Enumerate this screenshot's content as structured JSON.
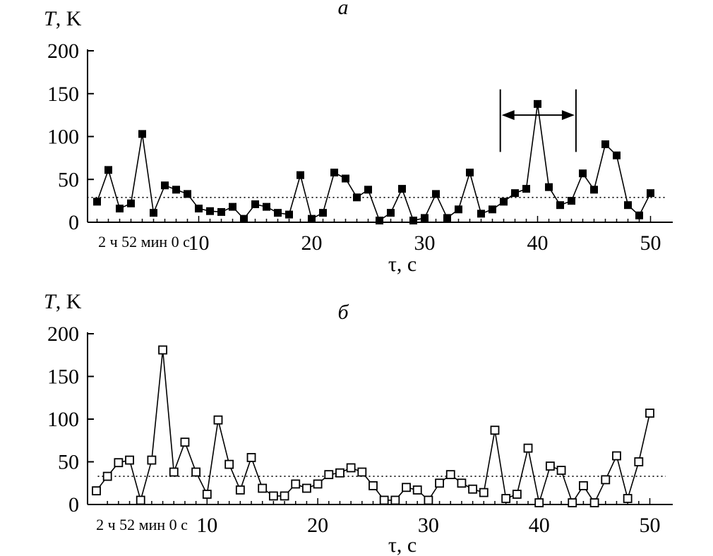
{
  "chart_data": [
    {
      "type": "scatter",
      "panel_label": "а",
      "ylabel_symbol": "T",
      "ylabel_unit": ", K",
      "xlabel": "τ, с",
      "start_label": "2 ч 52 мин 0 с",
      "xlim": [
        0,
        51
      ],
      "ylim": [
        0,
        200
      ],
      "x_ticks": [
        10,
        20,
        30,
        40,
        50
      ],
      "y_ticks": [
        0,
        50,
        100,
        150,
        200
      ],
      "threshold": 29,
      "marker": "filled-square",
      "interval_marker": {
        "x_start": 36.7,
        "x_end": 43.4,
        "y_top": 155,
        "y_arrow": 125,
        "y_bottom": 82
      },
      "series": [
        {
          "x": [
            1,
            2,
            3,
            4,
            5,
            6,
            7,
            8,
            9,
            10,
            11,
            12,
            13,
            14,
            15,
            16,
            17,
            18,
            19,
            20,
            21,
            22,
            23,
            24,
            25,
            26,
            27,
            28,
            29,
            30,
            31,
            32,
            33,
            34,
            35,
            36,
            37,
            38,
            39,
            40,
            41,
            42,
            43,
            44,
            45,
            46,
            47,
            48,
            49,
            50
          ],
          "values": [
            24,
            61,
            16,
            22,
            103,
            11,
            43,
            38,
            33,
            16,
            13,
            12,
            18,
            4,
            21,
            18,
            11,
            9,
            55,
            4,
            11,
            58,
            51,
            29,
            38,
            2,
            11,
            39,
            2,
            5,
            33,
            5,
            15,
            58,
            10,
            15,
            24,
            34,
            39,
            138,
            41,
            20,
            25,
            57,
            38,
            91,
            78,
            20,
            8,
            34
          ]
        }
      ]
    },
    {
      "type": "scatter",
      "panel_label": "б",
      "ylabel_symbol": "T",
      "ylabel_unit": ", K",
      "xlabel": "τ, с",
      "start_label": "2 ч 52 мин 0 с",
      "xlim": [
        0,
        51
      ],
      "ylim": [
        0,
        200
      ],
      "x_ticks": [
        10,
        20,
        30,
        40,
        50
      ],
      "y_ticks": [
        0,
        50,
        100,
        150,
        200
      ],
      "threshold": 33,
      "marker": "open-square",
      "series": [
        {
          "x": [
            0,
            1,
            2,
            3,
            4,
            5,
            6,
            7,
            8,
            9,
            10,
            11,
            12,
            13,
            14,
            15,
            16,
            17,
            18,
            19,
            20,
            21,
            22,
            23,
            24,
            25,
            26,
            27,
            28,
            29,
            30,
            31,
            32,
            33,
            34,
            35,
            36,
            37,
            38,
            39,
            40,
            41,
            42,
            43,
            44,
            45,
            46,
            47,
            48,
            49,
            50
          ],
          "values": [
            16,
            33,
            49,
            52,
            5,
            52,
            181,
            38,
            73,
            38,
            12,
            99,
            47,
            17,
            55,
            19,
            10,
            10,
            24,
            19,
            24,
            35,
            37,
            43,
            38,
            22,
            5,
            5,
            20,
            17,
            5,
            25,
            35,
            25,
            18,
            14,
            87,
            7,
            12,
            66,
            2,
            45,
            40,
            2,
            22,
            2,
            29,
            57,
            7,
            50,
            107
          ]
        }
      ]
    }
  ]
}
